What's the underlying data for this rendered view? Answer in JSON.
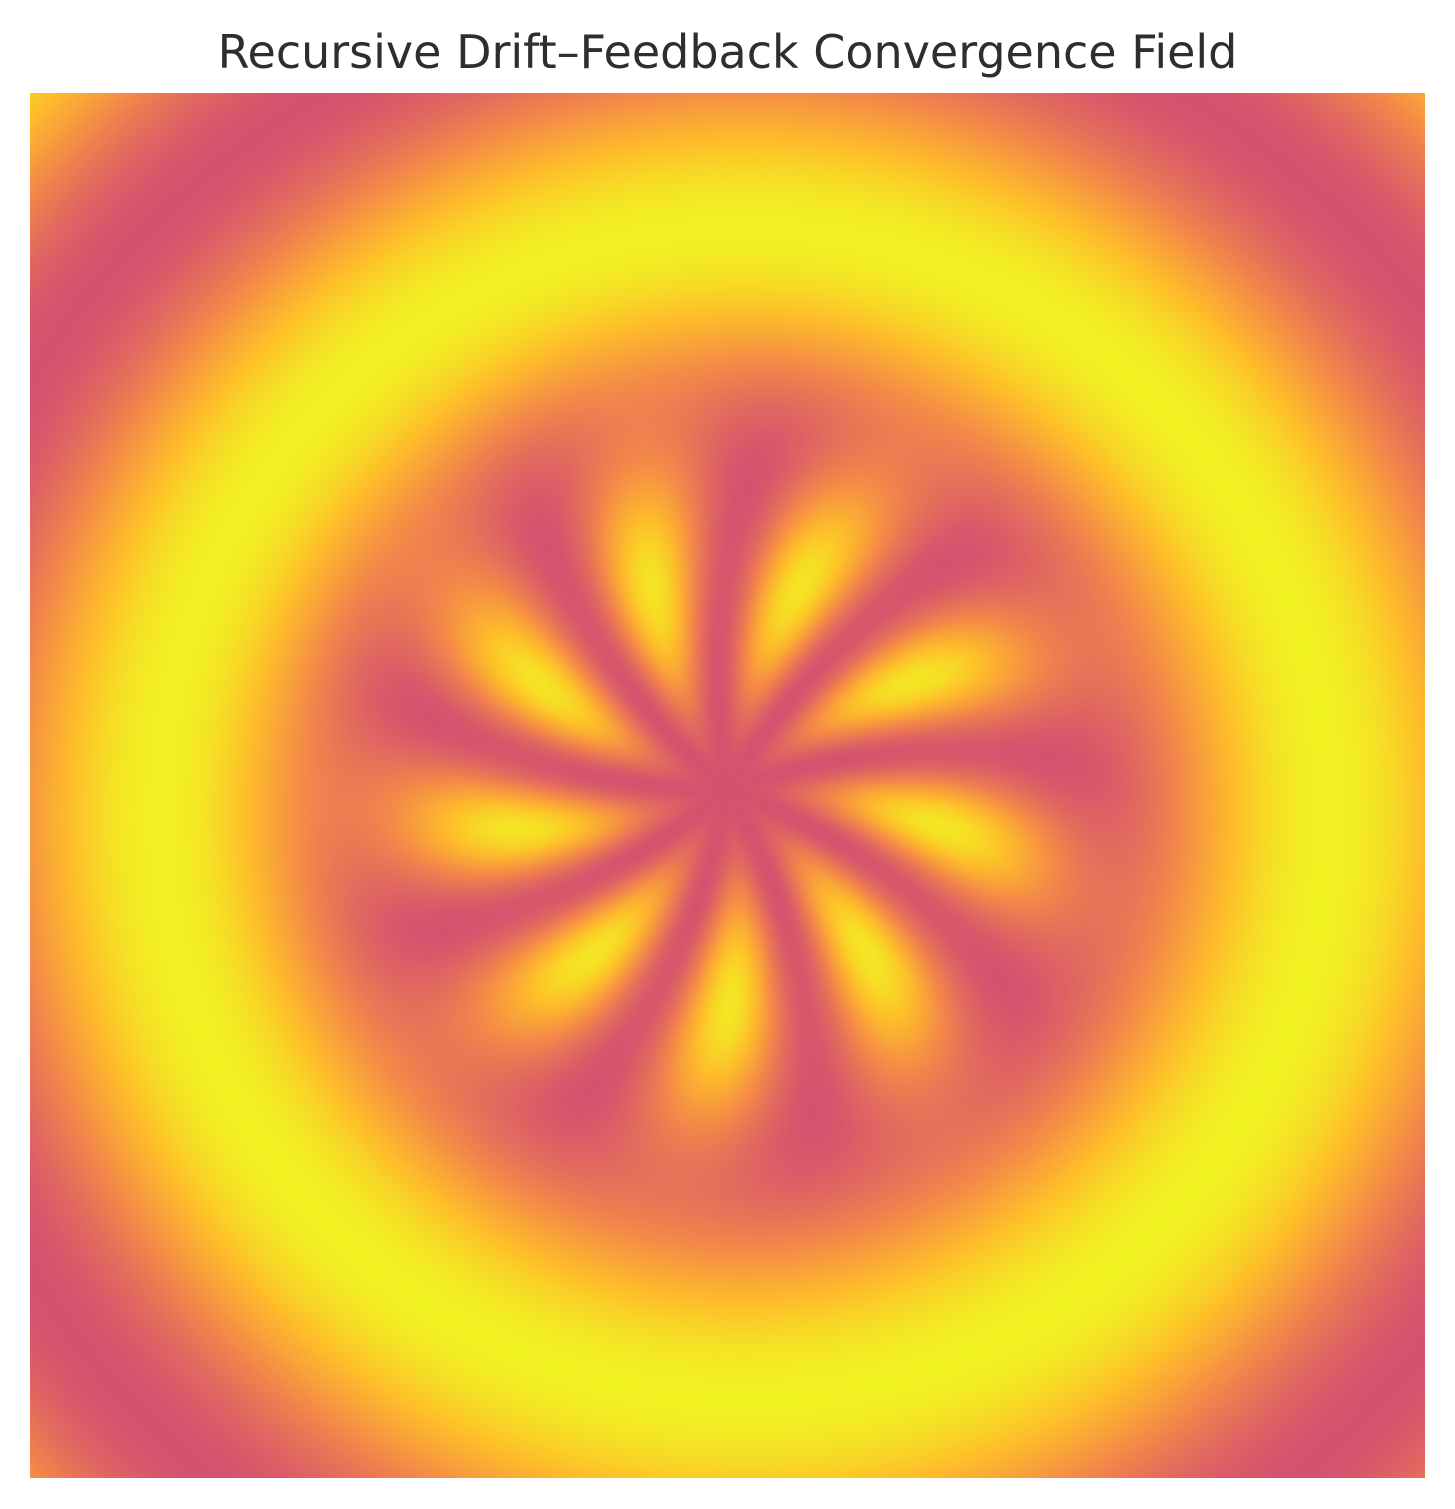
{
  "chart_data": {
    "type": "heatmap",
    "title": "Recursive Drift–Feedback Convergence Field",
    "xlabel": "",
    "ylabel": "",
    "axes_visible": false,
    "grid": false,
    "legend": "none",
    "colormap": "plasma",
    "colormap_stops": [
      "#0d0887",
      "#5302a3",
      "#8b0aa5",
      "#b83289",
      "#db5c68",
      "#f48849",
      "#febd2a",
      "#f0f921"
    ],
    "center_feature": {
      "petals": 9
    },
    "structure": "central nine-lobed radial flower with bright yellow petals, surrounded by concentric alternating orange and dark purple rings"
  }
}
